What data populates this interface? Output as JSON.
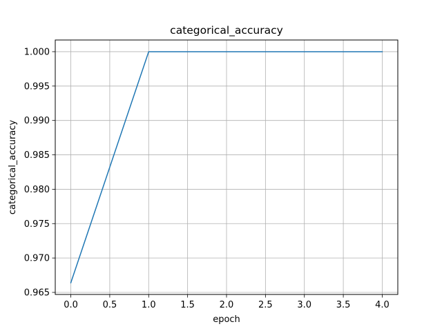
{
  "chart_data": {
    "type": "line",
    "title": "categorical_accuracy",
    "xlabel": "epoch",
    "ylabel": "categorical_accuracy",
    "xlim": [
      -0.2,
      4.2
    ],
    "ylim": [
      0.9647,
      1.0017
    ],
    "x_ticks": [
      0.0,
      0.5,
      1.0,
      1.5,
      2.0,
      2.5,
      3.0,
      3.5,
      4.0
    ],
    "x_tick_labels": [
      "0.0",
      "0.5",
      "1.0",
      "1.5",
      "2.0",
      "2.5",
      "3.0",
      "3.5",
      "4.0"
    ],
    "y_ticks": [
      0.965,
      0.97,
      0.975,
      0.98,
      0.985,
      0.99,
      0.995,
      1.0
    ],
    "y_tick_labels": [
      "0.965",
      "0.970",
      "0.975",
      "0.980",
      "0.985",
      "0.990",
      "0.995",
      "1.000"
    ],
    "grid": true,
    "series": [
      {
        "x": [
          0,
          1,
          2,
          3,
          4
        ],
        "values": [
          0.9664,
          1.0,
          1.0,
          1.0,
          1.0
        ],
        "color": "#1f77b4"
      }
    ]
  }
}
